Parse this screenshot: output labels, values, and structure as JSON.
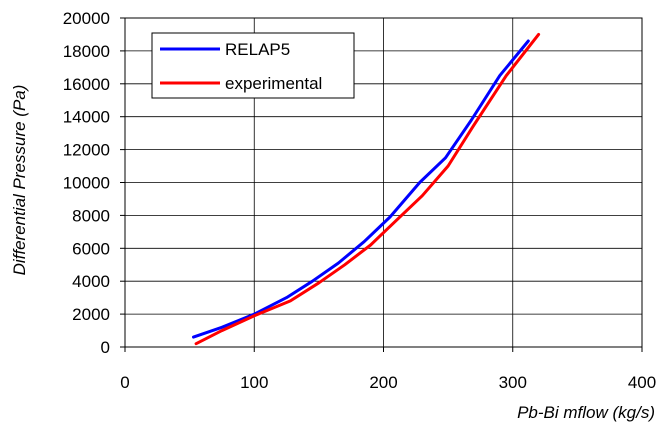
{
  "chart_data": {
    "type": "line",
    "title": "",
    "xlabel": "Pb-Bi  mflow (kg/s)",
    "ylabel": "Differential Pressure (Pa)",
    "xlim": [
      0,
      400
    ],
    "ylim": [
      0,
      20000
    ],
    "xticks": [
      0,
      100,
      200,
      300,
      400
    ],
    "yticks": [
      0,
      2000,
      4000,
      6000,
      8000,
      10000,
      12000,
      14000,
      16000,
      18000,
      20000
    ],
    "grid": true,
    "legend_position": "top-left",
    "series": [
      {
        "name": "RELAP5",
        "color": "#0000ff",
        "x": [
          53,
          75,
          100,
          125,
          145,
          165,
          185,
          205,
          228,
          248,
          268,
          290,
          312
        ],
        "y": [
          600,
          1200,
          2000,
          3000,
          4000,
          5100,
          6400,
          7900,
          10000,
          11500,
          13800,
          16500,
          18600
        ]
      },
      {
        "name": "experimental",
        "color": "#ff0000",
        "x": [
          55,
          75,
          100,
          128,
          150,
          170,
          190,
          210,
          230,
          250,
          270,
          295,
          320
        ],
        "y": [
          200,
          1000,
          1900,
          2800,
          3900,
          5000,
          6200,
          7700,
          9200,
          11000,
          13500,
          16500,
          19000
        ]
      }
    ]
  }
}
